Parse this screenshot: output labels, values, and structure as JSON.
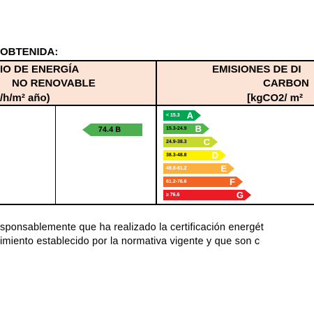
{
  "section_title": "OBTENIDA:",
  "consumption_header": {
    "line1": "IO DE ENERGÍA",
    "line2": "NO RENOVABLE",
    "unit": "/h/m² año)"
  },
  "emissions_header": {
    "line1": "EMISIONES DE DI",
    "line2": "CARBON",
    "unit": "[kgCO2/ m²"
  },
  "consumption_value": {
    "label": "74.4 B",
    "color": "#4caf50"
  },
  "rating_scale": [
    {
      "range": "< 15.3",
      "letter": "A",
      "color": "#00a651",
      "range_color": "#ffffff"
    },
    {
      "range": "15.3-24.9",
      "letter": "B",
      "color": "#50b848",
      "range_color": "#000000"
    },
    {
      "range": "24.9-38.3",
      "letter": "C",
      "color": "#c7d92f",
      "range_color": "#000000"
    },
    {
      "range": "38.3-48.8",
      "letter": "D",
      "color": "#fff200",
      "range_color": "#000000"
    },
    {
      "range": "49.8-61.2",
      "letter": "E",
      "color": "#fbb040",
      "range_color": "#ffffff"
    },
    {
      "range": "61.2-76.6",
      "letter": "F",
      "color": "#f26522",
      "range_color": "#ffffff"
    },
    {
      "range": "≥ 76.6",
      "letter": "G",
      "color": "#ed1c24",
      "range_color": "#ffffff"
    }
  ],
  "paragraph": {
    "line1": "sponsablemente que ha realizado la certificación energét",
    "line2": "imiento establecido por la normativa vigente y que son c"
  }
}
